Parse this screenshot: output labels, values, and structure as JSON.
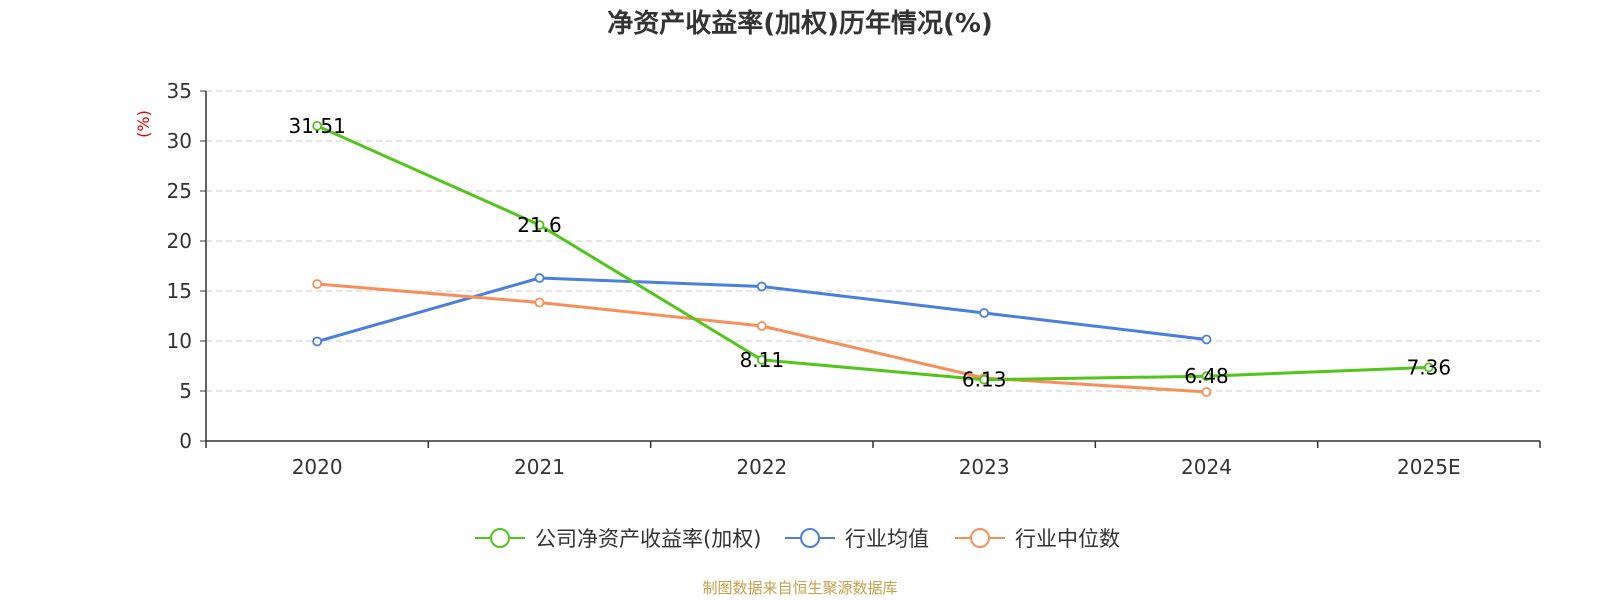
{
  "chart_data": {
    "type": "line",
    "title": "净资产收益率(加权)历年情况(%)",
    "ylabel": "(%)",
    "xlabel": "",
    "categories": [
      "2020",
      "2021",
      "2022",
      "2023",
      "2024",
      "2025E"
    ],
    "ylim": [
      0,
      35
    ],
    "yticks": [
      0,
      5,
      10,
      15,
      20,
      25,
      30,
      35
    ],
    "grid": true,
    "legend_position": "bottom",
    "series": [
      {
        "name": "公司净资产收益率(加权)",
        "color": "#52c41a",
        "values": [
          31.51,
          21.6,
          8.11,
          6.13,
          6.48,
          7.36
        ],
        "labels": [
          "31.51",
          "21.6",
          "8.11",
          "6.13",
          "6.48",
          "7.36"
        ]
      },
      {
        "name": "行业均值",
        "color": "#4a7fdc",
        "values": [
          9.95,
          16.3,
          15.45,
          12.8,
          10.15,
          null
        ]
      },
      {
        "name": "行业中位数",
        "color": "#f78f5b",
        "values": [
          15.7,
          13.85,
          11.5,
          6.3,
          4.9,
          null
        ]
      }
    ]
  },
  "footer": {
    "source": "制图数据来自恒生聚源数据库",
    "source_color": "#c8a04b"
  },
  "colors": {
    "axis": "#333333",
    "grid": "#cccccc",
    "unit": "#e00000"
  }
}
